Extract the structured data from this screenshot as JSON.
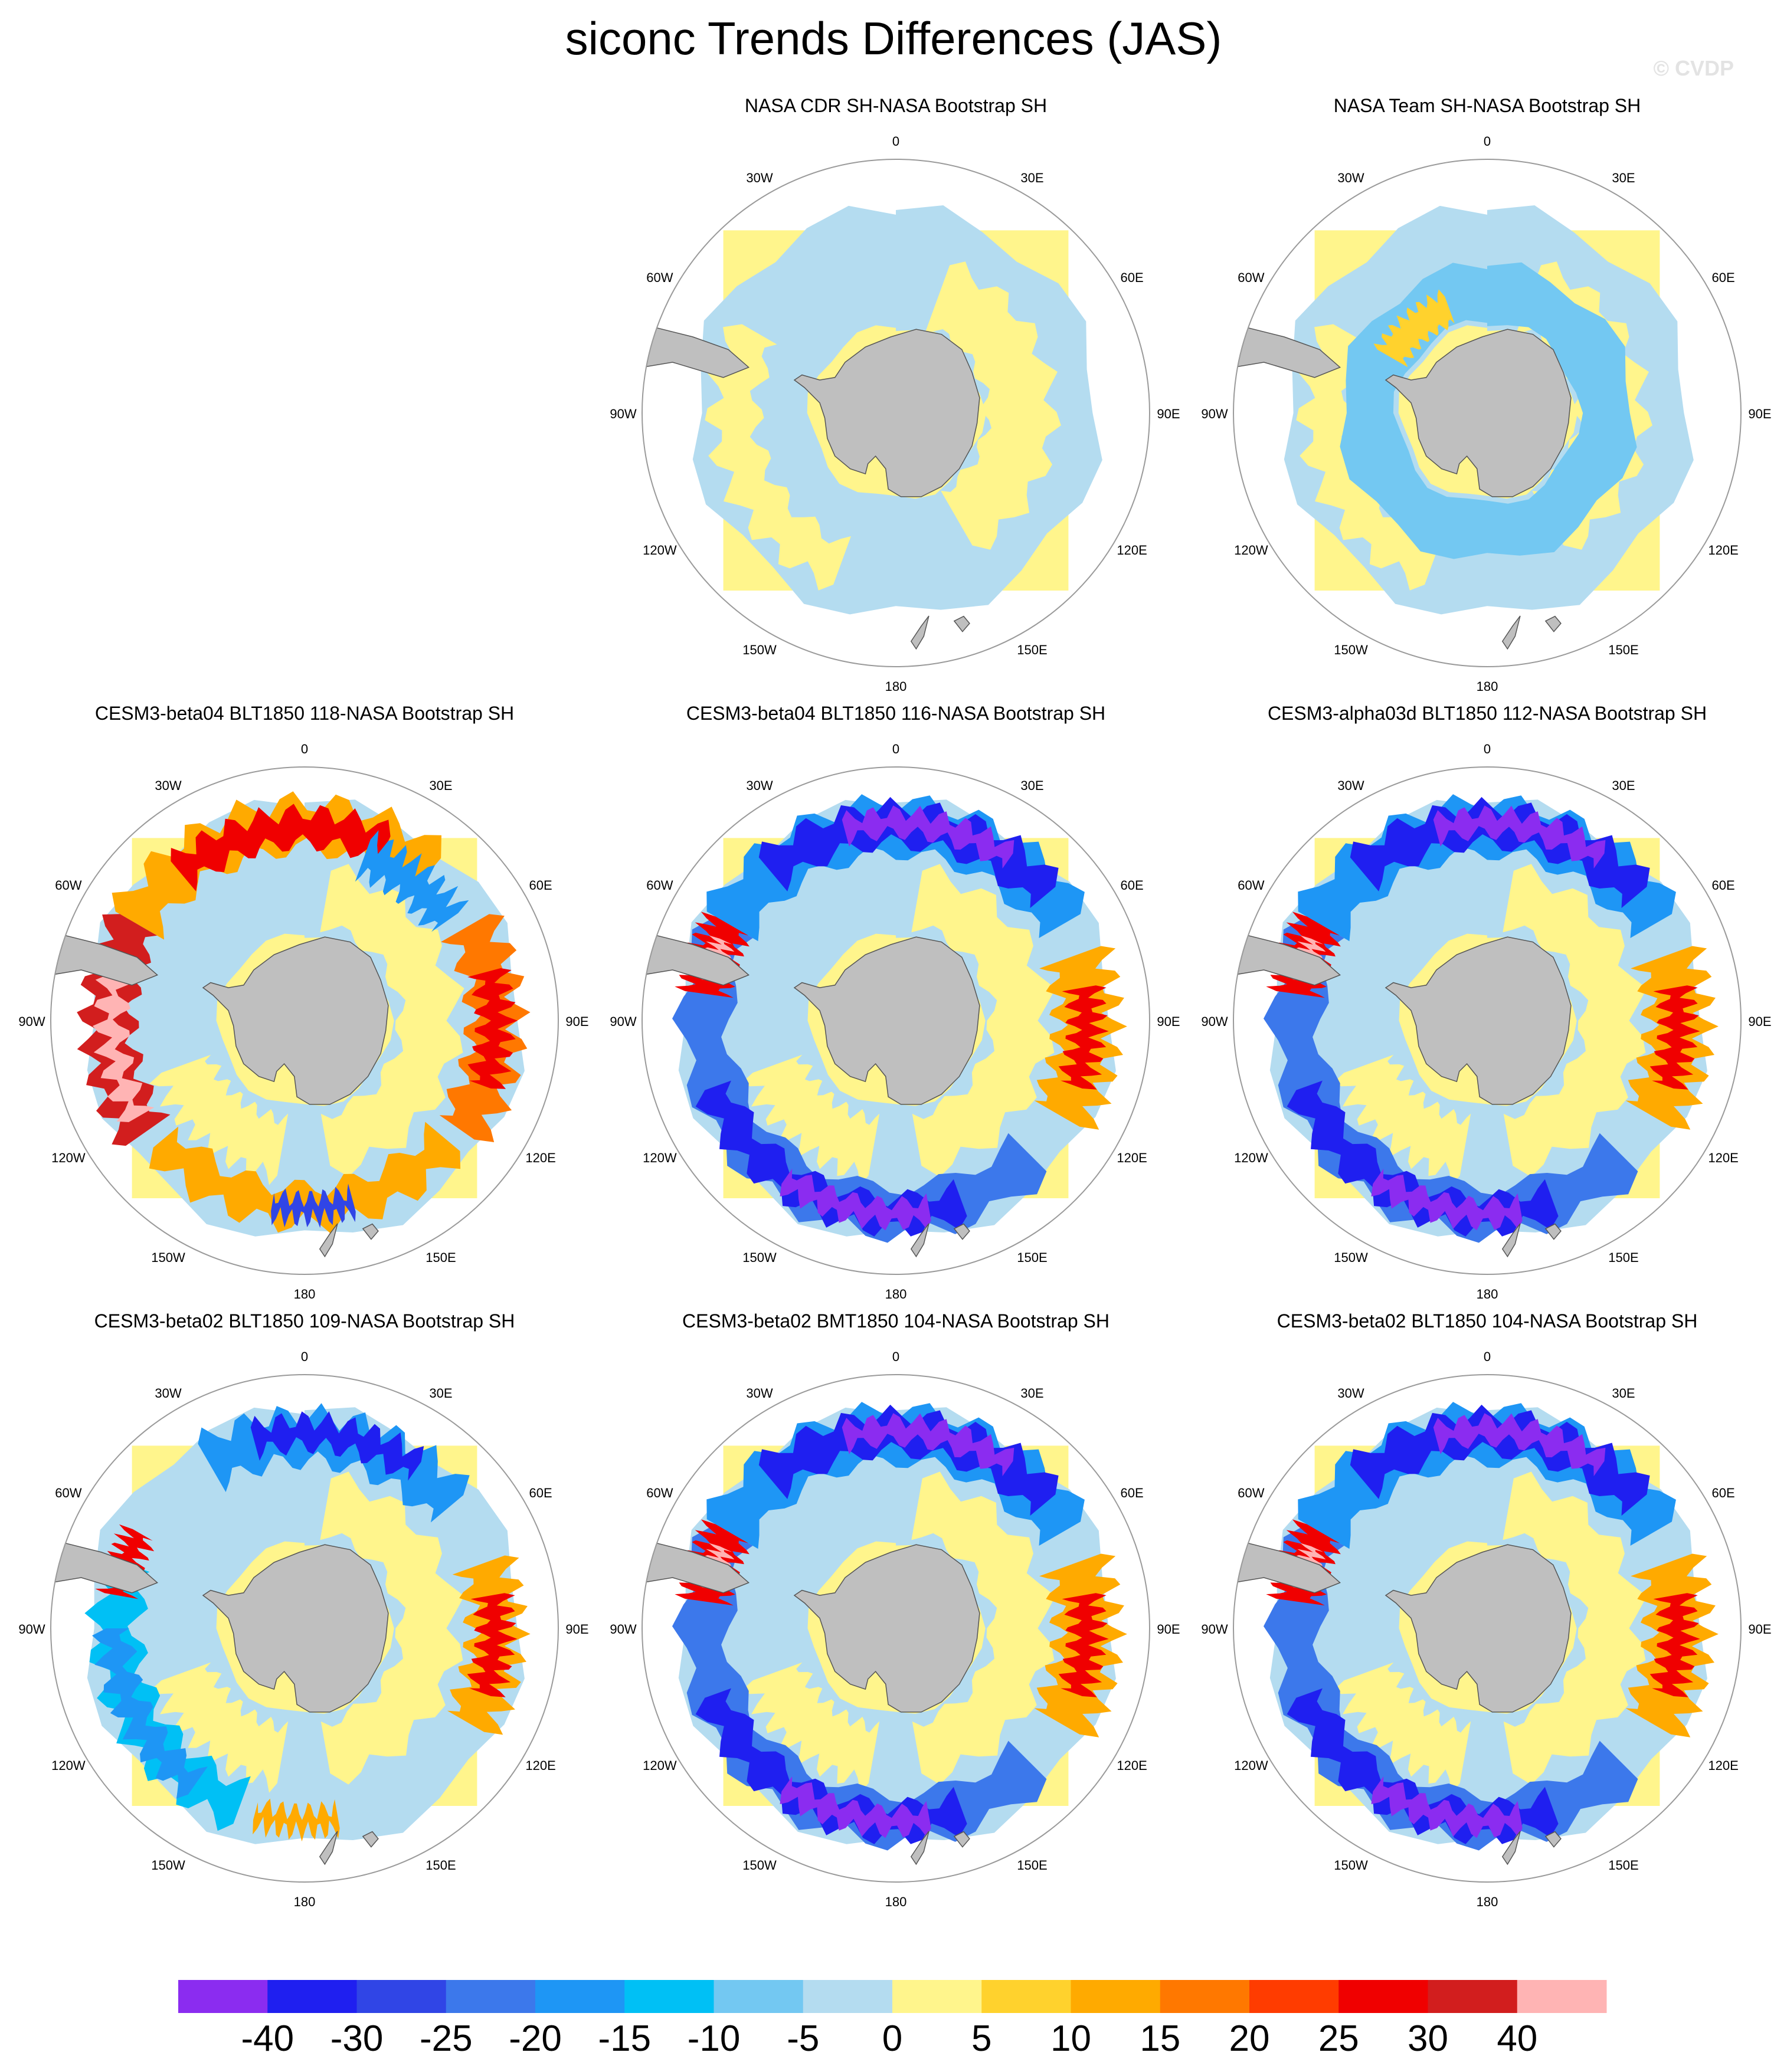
{
  "title": "siconc Trends Differences (JAS)",
  "watermark": "© CVDP",
  "longitude_labels": [
    "0",
    "30E",
    "60E",
    "90E",
    "120E",
    "150E",
    "180",
    "150W",
    "120W",
    "90W",
    "60W",
    "30W"
  ],
  "panels": [
    {
      "title": "NASA CDR SH-NASA Bootstrap SH",
      "pattern": "obs_cdr"
    },
    {
      "title": "NASA Team SH-NASA Bootstrap SH",
      "pattern": "obs_team"
    },
    {
      "title": "CESM3-beta04 BLT1850 118-NASA Bootstrap SH",
      "pattern": "warm"
    },
    {
      "title": "CESM3-beta04 BLT1850 116-NASA Bootstrap SH",
      "pattern": "cool"
    },
    {
      "title": "CESM3-alpha03d BLT1850 112-NASA Bootstrap SH",
      "pattern": "cool"
    },
    {
      "title": "CESM3-beta02 BLT1850 109-NASA Bootstrap SH",
      "pattern": "mixed"
    },
    {
      "title": "CESM3-beta02 BMT1850 104-NASA Bootstrap SH",
      "pattern": "cool"
    },
    {
      "title": "CESM3-beta02 BLT1850 104-NASA Bootstrap SH",
      "pattern": "cool"
    }
  ],
  "colorbar": {
    "colors": [
      "#8b2cf0",
      "#1f1ff0",
      "#3045e6",
      "#3c78eb",
      "#1e96f5",
      "#00c0f5",
      "#73c8f2",
      "#b4dcf0",
      "#fff58c",
      "#ffd22d",
      "#ffaa00",
      "#ff7800",
      "#ff3c00",
      "#f00000",
      "#d21e1e",
      "#ffb4b4"
    ],
    "labels": [
      "-40",
      "-30",
      "-25",
      "-20",
      "-15",
      "-10",
      "-5",
      "0",
      "5",
      "10",
      "15",
      "20",
      "25",
      "30",
      "40"
    ]
  },
  "land_color": "#bfbfbf"
}
